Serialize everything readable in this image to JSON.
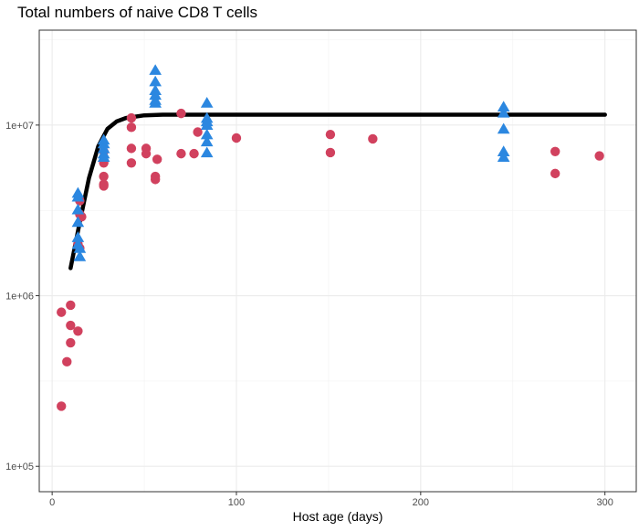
{
  "chart_data": {
    "type": "scatter",
    "title": "Total numbers of naive CD8 T cells",
    "xlabel": "Host age (days)",
    "ylabel": "",
    "x_scale": "linear",
    "y_scale": "log10",
    "xlim": [
      -7,
      317
    ],
    "ylim": [
      71000,
      36000000
    ],
    "x_ticks": [
      0,
      100,
      200,
      300
    ],
    "x_tick_labels": [
      "0",
      "100",
      "200",
      "300"
    ],
    "y_ticks": [
      100000,
      1000000,
      10000000
    ],
    "y_tick_labels": [
      "1e+05",
      "1e+06",
      "1e+07"
    ],
    "grid": true,
    "series": [
      {
        "marker": "circle",
        "color": "#d1415e",
        "x": [
          5,
          5,
          8,
          10,
          10,
          10,
          14,
          14,
          15,
          15,
          15,
          16,
          28,
          28,
          28,
          28,
          28,
          43,
          43,
          43,
          43,
          51,
          51,
          56,
          56,
          57,
          70,
          70,
          77,
          79,
          100,
          151,
          151,
          174,
          273,
          273,
          297
        ],
        "y": [
          225000,
          800000,
          410000,
          880000,
          670000,
          530000,
          620000,
          2000000,
          1900000,
          3000000,
          3600000,
          2900000,
          4400000,
          4500000,
          5000000,
          6000000,
          7000000,
          11000000,
          9700000,
          7300000,
          6000000,
          7300000,
          6800000,
          5000000,
          4800000,
          6300000,
          11700000,
          6800000,
          6800000,
          9100000,
          8400000,
          8800000,
          6900000,
          8300000,
          7000000,
          5200000,
          6600000
        ]
      },
      {
        "marker": "triangle",
        "color": "#2b87e0",
        "x": [
          14,
          14,
          14,
          14,
          14,
          14,
          15,
          15,
          28,
          28,
          28,
          28,
          28,
          56,
          56,
          56,
          56,
          56,
          56,
          84,
          84,
          84,
          84,
          84,
          84,
          84,
          245,
          245,
          245,
          245,
          245
        ],
        "y": [
          4000000,
          3800000,
          3200000,
          2700000,
          2200000,
          2000000,
          1700000,
          1900000,
          8200000,
          7800000,
          7300000,
          6800000,
          6500000,
          21000000,
          18000000,
          16000000,
          15000000,
          14000000,
          13500000,
          13500000,
          11000000,
          10000000,
          8800000,
          8000000,
          6900000,
          10500000,
          12800000,
          11800000,
          9500000,
          7000000,
          6500000
        ]
      },
      {
        "marker": "line",
        "color": "#000000",
        "x": [
          10,
          15,
          20,
          25,
          30,
          35,
          40,
          50,
          60,
          80,
          100,
          150,
          200,
          250,
          300
        ],
        "y": [
          1450000,
          2700000,
          4900000,
          7500000,
          9500000,
          10500000,
          11000000,
          11400000,
          11500000,
          11500000,
          11500000,
          11500000,
          11500000,
          11500000,
          11500000
        ]
      }
    ]
  }
}
